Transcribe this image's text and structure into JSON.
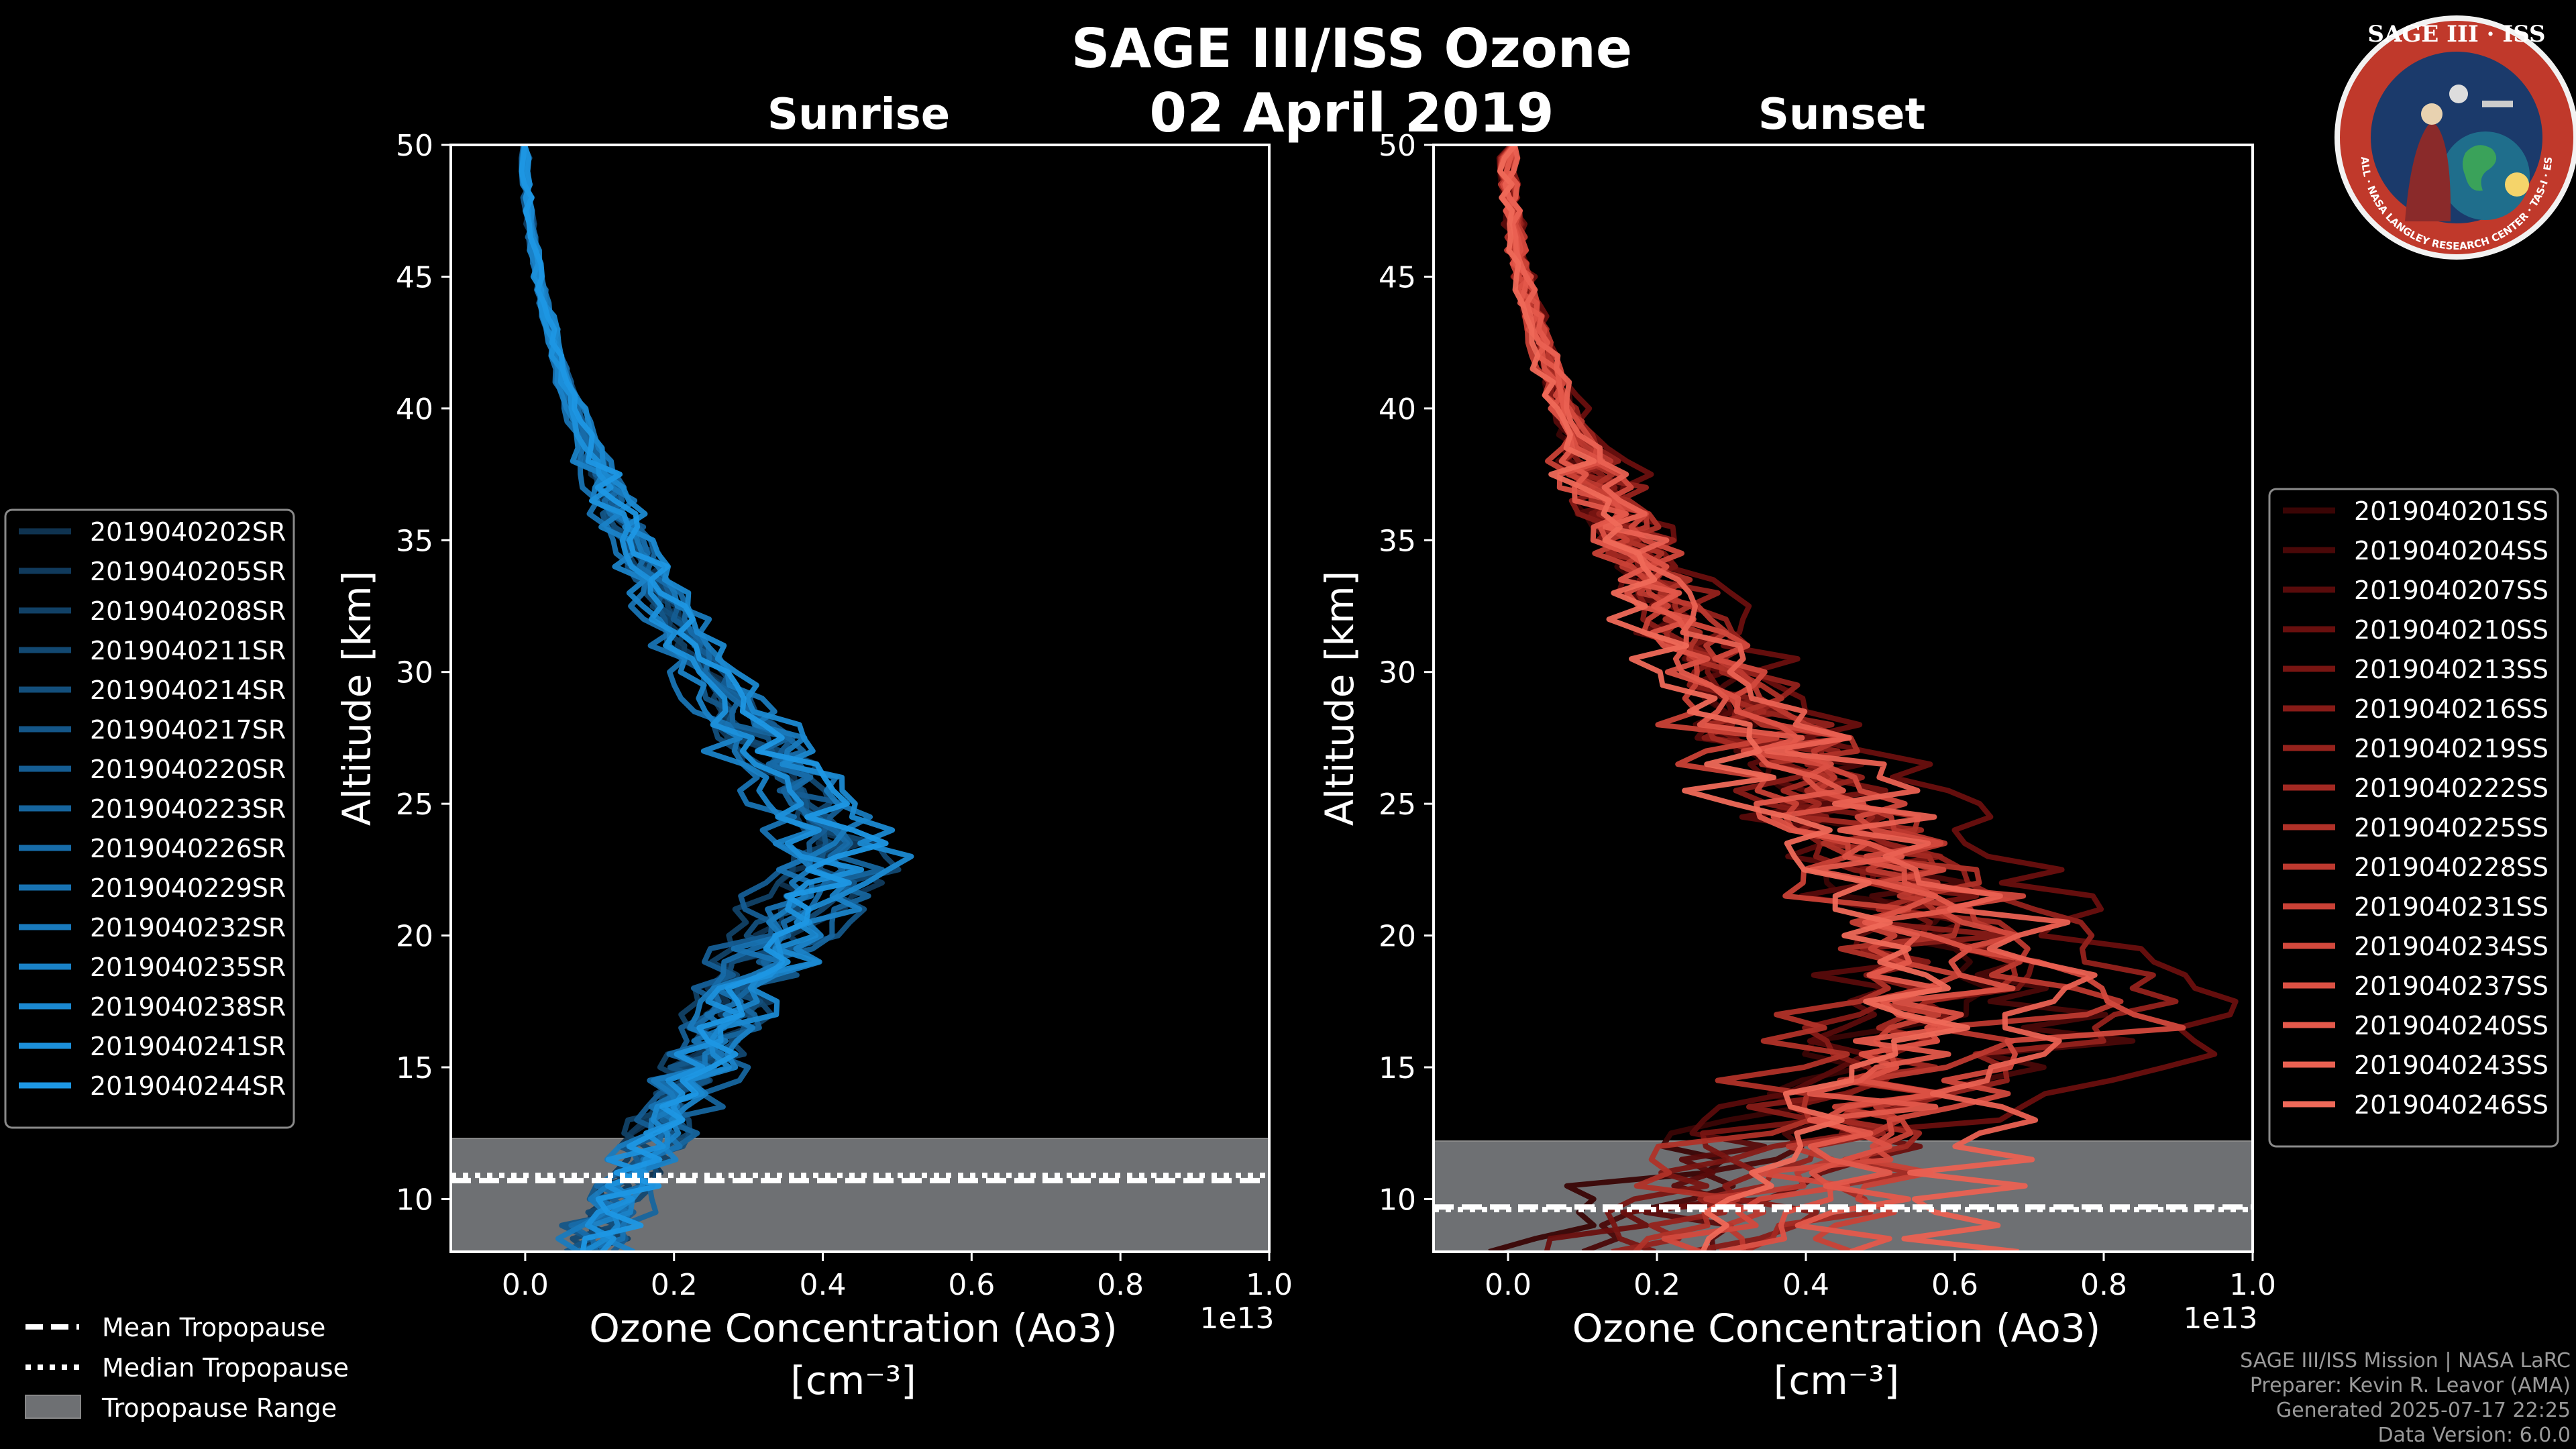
{
  "header": {
    "title": "SAGE III/ISS Ozone",
    "date": "02 April 2019"
  },
  "badge": {
    "text": "SAGE III · ISS",
    "ring_text": "BALL · NASA LANGLEY RESEARCH CENTER · TAS-I · ESA",
    "colors": {
      "ring": "#c0392b",
      "inner": "#1b3a6b",
      "text": "#ffffff"
    }
  },
  "footer": {
    "mission": "SAGE III/ISS Mission | NASA LaRC",
    "preparer": "Preparer: Kevin R. Leavor (AMA)",
    "generated": "Generated 2025-07-17 22:25",
    "version": "Data Version: 6.0.0"
  },
  "legend_tropopause": {
    "mean": "Mean Tropopause",
    "median": "Median Tropopause",
    "range": "Tropopause Range"
  },
  "chart_data": [
    {
      "type": "line",
      "title": "Sunrise",
      "xlabel": "Ozone Concentration (Ao3)",
      "xunit": "[cm⁻³]",
      "xscale": "1e13",
      "ylabel": "Altitude [km]",
      "xlim": [
        -0.1,
        1.0
      ],
      "ylim": [
        8,
        50
      ],
      "xticks": [
        "0.0",
        "0.2",
        "0.4",
        "0.6",
        "0.8",
        "1.0"
      ],
      "yticks": [
        "10",
        "15",
        "20",
        "25",
        "30",
        "35",
        "40",
        "45",
        "50"
      ],
      "legend_position": "left",
      "tropopause": {
        "mean_km": 10.7,
        "median_km": 10.9,
        "range_km": [
          8,
          12.3
        ]
      },
      "series": [
        {
          "name": "2019040202SR",
          "color": "#0f3350",
          "peak_x": 0.43,
          "peak_alt": 23.5,
          "low_x": 0.09
        },
        {
          "name": "2019040205SR",
          "color": "#103a5c",
          "peak_x": 0.46,
          "peak_alt": 22.0,
          "low_x": 0.07
        },
        {
          "name": "2019040208SR",
          "color": "#114166",
          "peak_x": 0.4,
          "peak_alt": 24.0,
          "low_x": 0.1
        },
        {
          "name": "2019040211SR",
          "color": "#124871",
          "peak_x": 0.48,
          "peak_alt": 22.5,
          "low_x": 0.08
        },
        {
          "name": "2019040214SR",
          "color": "#134f7c",
          "peak_x": 0.42,
          "peak_alt": 23.0,
          "low_x": 0.11
        },
        {
          "name": "2019040217SR",
          "color": "#145688",
          "peak_x": 0.45,
          "peak_alt": 21.5,
          "low_x": 0.06
        },
        {
          "name": "2019040220SR",
          "color": "#155d93",
          "peak_x": 0.41,
          "peak_alt": 24.5,
          "low_x": 0.09
        },
        {
          "name": "2019040223SR",
          "color": "#16659e",
          "peak_x": 0.47,
          "peak_alt": 22.5,
          "low_x": 0.12
        },
        {
          "name": "2019040226SR",
          "color": "#176ca9",
          "peak_x": 0.44,
          "peak_alt": 23.5,
          "low_x": 0.08
        },
        {
          "name": "2019040229SR",
          "color": "#1873b3",
          "peak_x": 0.39,
          "peak_alt": 22.0,
          "low_x": 0.1
        },
        {
          "name": "2019040232SR",
          "color": "#197abd",
          "peak_x": 0.46,
          "peak_alt": 24.0,
          "low_x": 0.07
        },
        {
          "name": "2019040235SR",
          "color": "#1a82c7",
          "peak_x": 0.43,
          "peak_alt": 21.0,
          "low_x": 0.11
        },
        {
          "name": "2019040238SR",
          "color": "#1b89d1",
          "peak_x": 0.5,
          "peak_alt": 23.0,
          "low_x": 0.09
        },
        {
          "name": "2019040241SR",
          "color": "#1c90db",
          "peak_x": 0.42,
          "peak_alt": 22.5,
          "low_x": 0.08
        },
        {
          "name": "2019040244SR",
          "color": "#1d97e4",
          "peak_x": 0.45,
          "peak_alt": 23.5,
          "low_x": 0.1
        }
      ]
    },
    {
      "type": "line",
      "title": "Sunset",
      "xlabel": "Ozone Concentration (Ao3)",
      "xunit": "[cm⁻³]",
      "xscale": "1e13",
      "ylabel": "Altitude [km]",
      "xlim": [
        -0.1,
        1.0
      ],
      "ylim": [
        8,
        50
      ],
      "xticks": [
        "0.0",
        "0.2",
        "0.4",
        "0.6",
        "0.8",
        "1.0"
      ],
      "yticks": [
        "10",
        "15",
        "20",
        "25",
        "30",
        "35",
        "40",
        "45",
        "50"
      ],
      "legend_position": "right",
      "tropopause": {
        "mean_km": 9.7,
        "median_km": 9.6,
        "range_km": [
          8,
          12.2
        ]
      },
      "series": [
        {
          "name": "2019040201SS",
          "color": "#3a0505",
          "peak_x": 0.62,
          "peak_alt": 18.0,
          "low_x": 0.05
        },
        {
          "name": "2019040204SS",
          "color": "#4a0808",
          "peak_x": 0.78,
          "peak_alt": 16.0,
          "low_x": 0.1
        },
        {
          "name": "2019040207SS",
          "color": "#590b0b",
          "peak_x": 0.55,
          "peak_alt": 19.5,
          "low_x": 0.2
        },
        {
          "name": "2019040210SS",
          "color": "#690f0e",
          "peak_x": 1.0,
          "peak_alt": 16.0,
          "low_x": 0.08
        },
        {
          "name": "2019040213SS",
          "color": "#781512",
          "peak_x": 0.7,
          "peak_alt": 18.5,
          "low_x": 0.15
        },
        {
          "name": "2019040216SS",
          "color": "#871b17",
          "peak_x": 0.58,
          "peak_alt": 20.0,
          "low_x": 0.3
        },
        {
          "name": "2019040219SS",
          "color": "#95221c",
          "peak_x": 0.85,
          "peak_alt": 17.0,
          "low_x": 0.12
        },
        {
          "name": "2019040222SS",
          "color": "#a32922",
          "peak_x": 0.66,
          "peak_alt": 19.0,
          "low_x": 0.4
        },
        {
          "name": "2019040225SS",
          "color": "#b03128",
          "peak_x": 0.6,
          "peak_alt": 21.0,
          "low_x": 0.18
        },
        {
          "name": "2019040228SS",
          "color": "#bd392f",
          "peak_x": 0.74,
          "peak_alt": 17.5,
          "low_x": 0.25
        },
        {
          "name": "2019040231SS",
          "color": "#c94136",
          "peak_x": 0.52,
          "peak_alt": 19.0,
          "low_x": 0.5
        },
        {
          "name": "2019040234SS",
          "color": "#d3493d",
          "peak_x": 0.82,
          "peak_alt": 16.5,
          "low_x": 0.22
        },
        {
          "name": "2019040237SS",
          "color": "#dc5144",
          "peak_x": 0.63,
          "peak_alt": 18.0,
          "low_x": 0.35
        },
        {
          "name": "2019040240SS",
          "color": "#e4594b",
          "peak_x": 0.56,
          "peak_alt": 20.5,
          "low_x": 0.45
        },
        {
          "name": "2019040243SS",
          "color": "#ea6152",
          "peak_x": 0.72,
          "peak_alt": 19.5,
          "low_x": 0.6
        },
        {
          "name": "2019040246SS",
          "color": "#ef6959",
          "peak_x": 0.57,
          "peak_alt": 17.0,
          "low_x": 0.28
        }
      ]
    }
  ]
}
